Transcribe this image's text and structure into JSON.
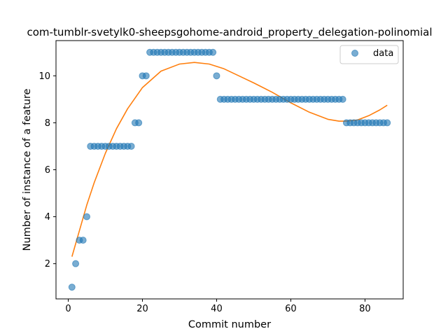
{
  "chart_data": {
    "type": "scatter",
    "title": "com-tumblr-svetylk0-sheepsgohome-android_property_delegation-polinomial",
    "xlabel": "Commit number",
    "ylabel": "Number of instance of a feature",
    "xlim": [
      -3.3,
      90.3
    ],
    "ylim": [
      0.5,
      11.5
    ],
    "xticks": [
      0,
      20,
      40,
      60,
      80
    ],
    "yticks": [
      2,
      4,
      6,
      8,
      10
    ],
    "grid": false,
    "legend_position": "top-right",
    "series": [
      {
        "name": "data",
        "kind": "scatter",
        "color": "#1f77b4",
        "x": [
          1,
          2,
          3,
          4,
          5,
          6,
          7,
          8,
          9,
          10,
          11,
          12,
          13,
          14,
          15,
          16,
          17,
          18,
          19,
          20,
          21,
          22,
          23,
          24,
          25,
          26,
          27,
          28,
          29,
          30,
          31,
          32,
          33,
          34,
          35,
          36,
          37,
          38,
          39,
          40,
          41,
          42,
          43,
          44,
          45,
          46,
          47,
          48,
          49,
          50,
          51,
          52,
          53,
          54,
          55,
          56,
          57,
          58,
          59,
          60,
          61,
          62,
          63,
          64,
          65,
          66,
          67,
          68,
          69,
          70,
          71,
          72,
          73,
          74,
          75,
          76,
          77,
          78,
          79,
          80,
          81,
          82,
          83,
          84,
          85,
          86
        ],
        "y": [
          1,
          2,
          3,
          3,
          4,
          7,
          7,
          7,
          7,
          7,
          7,
          7,
          7,
          7,
          7,
          7,
          7,
          8,
          8,
          10,
          10,
          11,
          11,
          11,
          11,
          11,
          11,
          11,
          11,
          11,
          11,
          11,
          11,
          11,
          11,
          11,
          11,
          11,
          11,
          10,
          9,
          9,
          9,
          9,
          9,
          9,
          9,
          9,
          9,
          9,
          9,
          9,
          9,
          9,
          9,
          9,
          9,
          9,
          9,
          9,
          9,
          9,
          9,
          9,
          9,
          9,
          9,
          9,
          9,
          9,
          9,
          9,
          9,
          9,
          8,
          8,
          8,
          8,
          8,
          8,
          8,
          8,
          8,
          8,
          8,
          8
        ]
      },
      {
        "name": "",
        "kind": "line",
        "color": "#ff7f0e",
        "x": [
          1,
          3,
          5,
          7,
          10,
          13,
          16,
          20,
          25,
          30,
          34,
          38,
          42,
          46,
          50,
          55,
          60,
          65,
          70,
          73,
          75,
          78,
          81,
          84,
          86
        ],
        "y": [
          2.3,
          3.4,
          4.5,
          5.45,
          6.7,
          7.75,
          8.6,
          9.5,
          10.2,
          10.5,
          10.57,
          10.5,
          10.3,
          10.0,
          9.7,
          9.3,
          8.85,
          8.45,
          8.15,
          8.07,
          8.07,
          8.12,
          8.3,
          8.55,
          8.75
        ]
      }
    ]
  }
}
